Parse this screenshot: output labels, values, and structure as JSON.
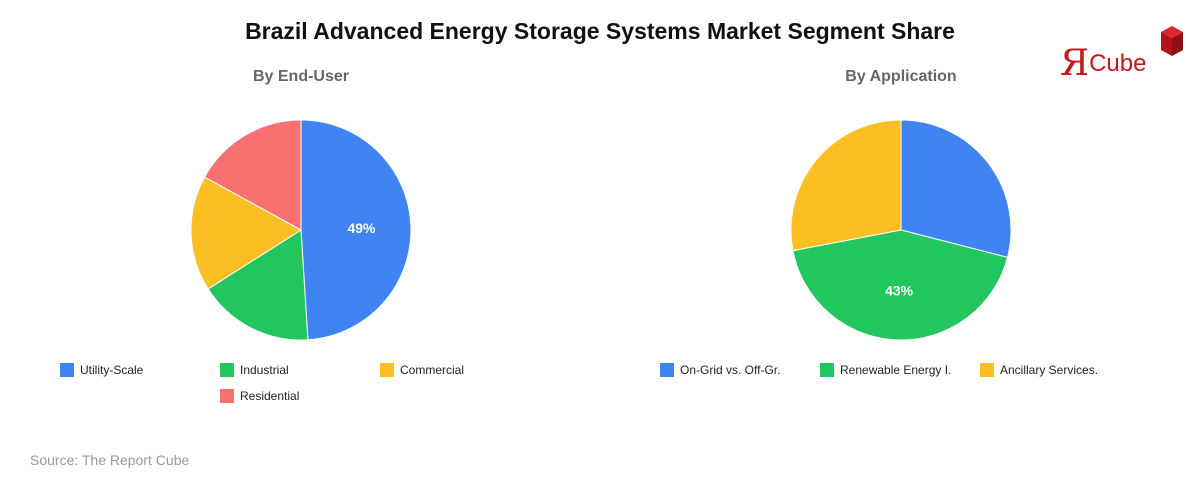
{
  "title": "Brazil Advanced Energy Storage Systems Market Segment Share",
  "source": "Source: The Report Cube",
  "logo": {
    "glyph": "Я",
    "text": "Cube",
    "color": "#c8161d"
  },
  "chart_data": [
    {
      "type": "pie",
      "title": "By End-User",
      "categories": [
        "Utility-Scale",
        "Industrial",
        "Commercial",
        "Residential"
      ],
      "values": [
        49,
        17,
        17,
        17
      ],
      "colors": [
        "#3f84f2",
        "#22c55e",
        "#fbbf24",
        "#f87171"
      ],
      "labeled_slice": 0,
      "slice_label": "49%",
      "legend": "bottom"
    },
    {
      "type": "pie",
      "title": "By Application",
      "categories": [
        "On-Grid vs. Off-Gr.",
        "Renewable Energy I.",
        "Ancillary Services."
      ],
      "values": [
        29,
        43,
        28
      ],
      "colors": [
        "#3f84f2",
        "#22c55e",
        "#fbbf24"
      ],
      "labeled_slice": 1,
      "slice_label": "43%",
      "legend": "bottom"
    }
  ]
}
